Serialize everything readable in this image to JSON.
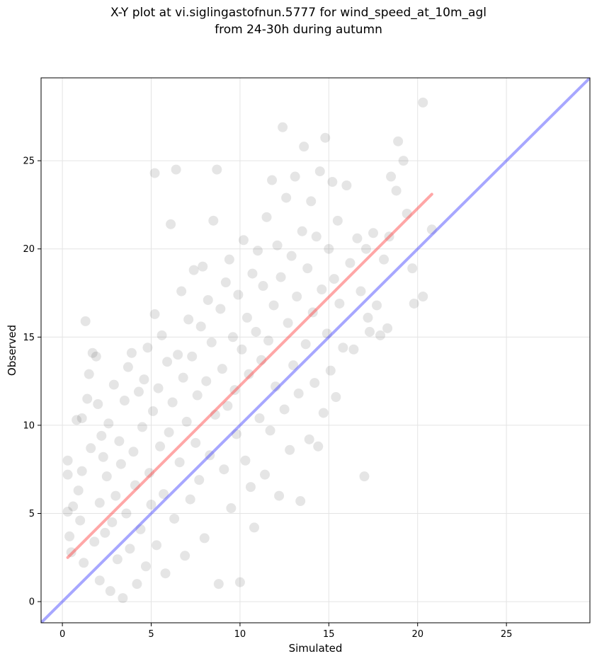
{
  "title_line1": "X-Y plot at vi.siglingastofnun.5777 for wind_speed_at_10m_agl",
  "title_line2": "from 24-30h during autumn",
  "colors": {
    "points": "#000000",
    "fit_line": "#ff3b3b",
    "identity_line": "#3b3bff",
    "grid": "#e4e4e4",
    "frame": "#000000"
  },
  "chart_data": {
    "type": "scatter",
    "title": "X-Y plot at vi.siglingastofnun.5777 for wind_speed_at_10m_agl from 24-30h during autumn",
    "xlabel": "Simulated",
    "ylabel": "Observed",
    "xlim": [
      -1.2,
      29.7
    ],
    "ylim": [
      -1.2,
      29.7
    ],
    "xticks": [
      0,
      5,
      10,
      15,
      20,
      25
    ],
    "yticks": [
      0,
      5,
      10,
      15,
      20,
      25
    ],
    "grid": true,
    "point_color": "#000000",
    "point_alpha": 0.1,
    "points": [
      [
        0.3,
        8.0
      ],
      [
        0.3,
        7.2
      ],
      [
        0.3,
        5.1
      ],
      [
        0.4,
        3.7
      ],
      [
        0.5,
        2.8
      ],
      [
        0.6,
        5.4
      ],
      [
        0.8,
        10.3
      ],
      [
        0.9,
        6.3
      ],
      [
        1.0,
        4.6
      ],
      [
        1.1,
        10.4
      ],
      [
        1.1,
        7.4
      ],
      [
        1.2,
        2.2
      ],
      [
        1.3,
        15.9
      ],
      [
        1.4,
        11.5
      ],
      [
        1.5,
        12.9
      ],
      [
        1.6,
        8.7
      ],
      [
        1.7,
        14.1
      ],
      [
        1.8,
        3.4
      ],
      [
        1.9,
        13.9
      ],
      [
        2.0,
        11.2
      ],
      [
        2.1,
        1.2
      ],
      [
        2.1,
        5.6
      ],
      [
        2.2,
        9.4
      ],
      [
        2.3,
        8.2
      ],
      [
        2.4,
        3.9
      ],
      [
        2.5,
        7.1
      ],
      [
        2.6,
        10.1
      ],
      [
        2.7,
        0.6
      ],
      [
        2.8,
        4.5
      ],
      [
        2.9,
        12.3
      ],
      [
        3.0,
        6.0
      ],
      [
        3.1,
        2.4
      ],
      [
        3.2,
        9.1
      ],
      [
        3.3,
        7.8
      ],
      [
        3.4,
        0.2
      ],
      [
        3.5,
        11.4
      ],
      [
        3.6,
        5.0
      ],
      [
        3.7,
        13.3
      ],
      [
        3.8,
        3.0
      ],
      [
        3.9,
        14.1
      ],
      [
        4.0,
        8.5
      ],
      [
        4.1,
        6.6
      ],
      [
        4.2,
        1.0
      ],
      [
        4.3,
        11.9
      ],
      [
        4.4,
        4.1
      ],
      [
        4.5,
        9.9
      ],
      [
        4.6,
        12.6
      ],
      [
        4.7,
        2.0
      ],
      [
        4.8,
        14.4
      ],
      [
        4.9,
        7.3
      ],
      [
        5.0,
        5.5
      ],
      [
        5.1,
        10.8
      ],
      [
        5.2,
        16.3
      ],
      [
        5.2,
        24.3
      ],
      [
        5.3,
        3.2
      ],
      [
        5.4,
        12.1
      ],
      [
        5.5,
        8.8
      ],
      [
        5.6,
        15.1
      ],
      [
        5.7,
        6.1
      ],
      [
        5.8,
        1.6
      ],
      [
        5.9,
        13.6
      ],
      [
        6.0,
        9.6
      ],
      [
        6.1,
        21.4
      ],
      [
        6.2,
        11.3
      ],
      [
        6.3,
        4.7
      ],
      [
        6.4,
        24.5
      ],
      [
        6.5,
        14.0
      ],
      [
        6.6,
        7.9
      ],
      [
        6.7,
        17.6
      ],
      [
        6.8,
        12.7
      ],
      [
        6.9,
        2.6
      ],
      [
        7.0,
        10.2
      ],
      [
        7.1,
        16.0
      ],
      [
        7.2,
        5.8
      ],
      [
        7.3,
        13.9
      ],
      [
        7.4,
        18.8
      ],
      [
        7.5,
        9.0
      ],
      [
        7.6,
        11.7
      ],
      [
        7.7,
        6.9
      ],
      [
        7.8,
        15.6
      ],
      [
        7.9,
        19.0
      ],
      [
        8.0,
        3.6
      ],
      [
        8.1,
        12.5
      ],
      [
        8.2,
        17.1
      ],
      [
        8.3,
        8.3
      ],
      [
        8.4,
        14.7
      ],
      [
        8.5,
        21.6
      ],
      [
        8.6,
        10.6
      ],
      [
        8.7,
        24.5
      ],
      [
        8.8,
        1.0
      ],
      [
        8.9,
        16.6
      ],
      [
        9.0,
        13.2
      ],
      [
        9.1,
        7.5
      ],
      [
        9.2,
        18.1
      ],
      [
        9.3,
        11.1
      ],
      [
        9.4,
        19.4
      ],
      [
        9.5,
        5.3
      ],
      [
        9.6,
        15.0
      ],
      [
        9.7,
        12.0
      ],
      [
        9.8,
        9.5
      ],
      [
        9.9,
        17.4
      ],
      [
        10.0,
        1.1
      ],
      [
        10.1,
        14.3
      ],
      [
        10.2,
        20.5
      ],
      [
        10.3,
        8.0
      ],
      [
        10.4,
        16.1
      ],
      [
        10.5,
        12.9
      ],
      [
        10.6,
        6.5
      ],
      [
        10.7,
        18.6
      ],
      [
        10.8,
        4.2
      ],
      [
        10.9,
        15.3
      ],
      [
        11.0,
        19.9
      ],
      [
        11.1,
        10.4
      ],
      [
        11.2,
        13.7
      ],
      [
        11.3,
        17.9
      ],
      [
        11.4,
        7.2
      ],
      [
        11.5,
        21.8
      ],
      [
        11.6,
        14.8
      ],
      [
        11.7,
        9.7
      ],
      [
        11.8,
        23.9
      ],
      [
        11.9,
        16.8
      ],
      [
        12.0,
        12.2
      ],
      [
        12.1,
        20.2
      ],
      [
        12.2,
        6.0
      ],
      [
        12.3,
        18.4
      ],
      [
        12.4,
        26.9
      ],
      [
        12.5,
        10.9
      ],
      [
        12.6,
        22.9
      ],
      [
        12.7,
        15.8
      ],
      [
        12.8,
        8.6
      ],
      [
        12.9,
        19.6
      ],
      [
        13.0,
        13.4
      ],
      [
        13.1,
        24.1
      ],
      [
        13.2,
        17.3
      ],
      [
        13.3,
        11.8
      ],
      [
        13.4,
        5.7
      ],
      [
        13.5,
        21.0
      ],
      [
        13.6,
        25.8
      ],
      [
        13.7,
        14.6
      ],
      [
        13.8,
        18.9
      ],
      [
        13.9,
        9.2
      ],
      [
        14.0,
        22.7
      ],
      [
        14.1,
        16.4
      ],
      [
        14.2,
        12.4
      ],
      [
        14.3,
        20.7
      ],
      [
        14.4,
        8.8
      ],
      [
        14.5,
        24.4
      ],
      [
        14.6,
        17.7
      ],
      [
        14.7,
        10.7
      ],
      [
        14.8,
        26.3
      ],
      [
        14.9,
        15.2
      ],
      [
        15.0,
        20.0
      ],
      [
        15.1,
        13.1
      ],
      [
        15.2,
        23.8
      ],
      [
        15.3,
        18.3
      ],
      [
        15.4,
        11.6
      ],
      [
        15.5,
        21.6
      ],
      [
        15.6,
        16.9
      ],
      [
        15.8,
        14.4
      ],
      [
        16.0,
        23.6
      ],
      [
        16.2,
        19.2
      ],
      [
        16.4,
        14.3
      ],
      [
        16.6,
        20.6
      ],
      [
        16.8,
        17.6
      ],
      [
        17.0,
        7.1
      ],
      [
        17.1,
        20.0
      ],
      [
        17.2,
        16.1
      ],
      [
        17.3,
        15.3
      ],
      [
        17.5,
        20.9
      ],
      [
        17.7,
        16.8
      ],
      [
        17.9,
        15.1
      ],
      [
        18.1,
        19.4
      ],
      [
        18.3,
        15.5
      ],
      [
        18.4,
        20.7
      ],
      [
        18.5,
        24.1
      ],
      [
        18.8,
        23.3
      ],
      [
        18.9,
        26.1
      ],
      [
        19.2,
        25.0
      ],
      [
        19.4,
        22.0
      ],
      [
        19.7,
        18.9
      ],
      [
        19.8,
        16.9
      ],
      [
        20.3,
        28.3
      ],
      [
        20.3,
        17.3
      ],
      [
        20.8,
        21.1
      ]
    ],
    "series": [
      {
        "name": "",
        "color": "#ff3b3b",
        "x": [
          0.3,
          20.8
        ],
        "y": [
          2.5,
          23.1
        ]
      },
      {
        "name": "",
        "color": "#3b3bff",
        "x": [
          -1.2,
          29.7
        ],
        "y": [
          -1.2,
          29.7
        ]
      }
    ]
  }
}
